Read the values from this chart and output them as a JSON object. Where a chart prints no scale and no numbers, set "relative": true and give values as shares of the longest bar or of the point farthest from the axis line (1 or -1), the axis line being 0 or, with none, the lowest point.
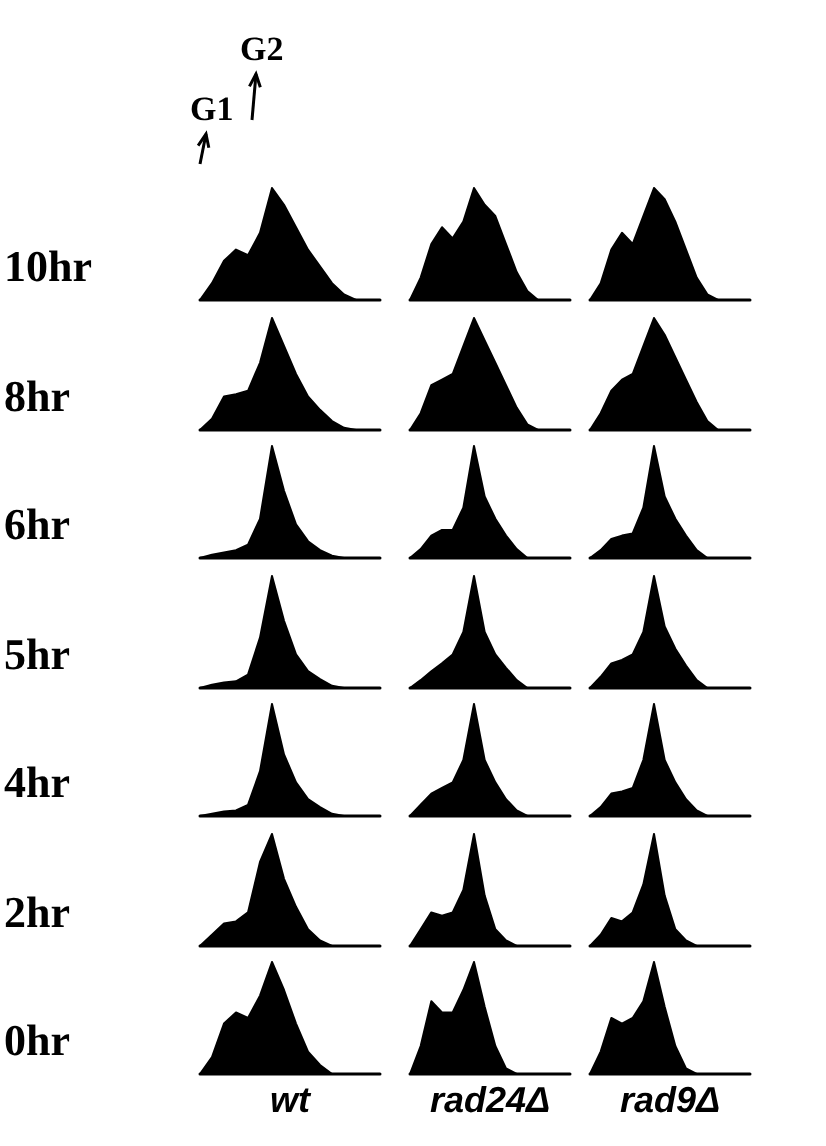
{
  "chart_data": [
    {
      "type": "area",
      "relative": true,
      "ylabel": "10hr",
      "annotations": [
        "G1",
        "G2"
      ],
      "categories": [
        null,
        null,
        null,
        null,
        null,
        null,
        null,
        null,
        null,
        null,
        null,
        null,
        null,
        null,
        null,
        null
      ],
      "series": [
        {
          "color": "#000000",
          "values": [
            0,
            0.15,
            0.35,
            0.45,
            0.4,
            0.6,
            1,
            0.85,
            0.65,
            0.45,
            0.3,
            0.15,
            0.05,
            0,
            0,
            0
          ]
        }
      ]
    },
    {
      "type": "area",
      "relative": true,
      "categories": [
        null,
        null,
        null,
        null,
        null,
        null,
        null,
        null,
        null,
        null,
        null,
        null,
        null,
        null,
        null,
        null
      ],
      "series": [
        {
          "color": "#000000",
          "values": [
            0,
            0.2,
            0.5,
            0.65,
            0.55,
            0.7,
            1,
            0.85,
            0.75,
            0.5,
            0.25,
            0.08,
            0,
            0,
            0,
            0
          ]
        }
      ]
    },
    {
      "type": "area",
      "relative": true,
      "categories": [
        null,
        null,
        null,
        null,
        null,
        null,
        null,
        null,
        null,
        null,
        null,
        null,
        null,
        null,
        null,
        null
      ],
      "series": [
        {
          "color": "#000000",
          "values": [
            0,
            0.15,
            0.45,
            0.6,
            0.5,
            0.75,
            1,
            0.9,
            0.7,
            0.45,
            0.2,
            0.05,
            0,
            0,
            0,
            0
          ]
        }
      ]
    },
    {
      "type": "area",
      "relative": true,
      "ylabel": "8hr",
      "categories": [
        null,
        null,
        null,
        null,
        null,
        null,
        null,
        null,
        null,
        null,
        null,
        null,
        null,
        null,
        null,
        null
      ],
      "series": [
        {
          "color": "#000000",
          "values": [
            0,
            0.1,
            0.3,
            0.32,
            0.35,
            0.6,
            1,
            0.75,
            0.5,
            0.3,
            0.18,
            0.08,
            0.02,
            0,
            0,
            0
          ]
        }
      ]
    },
    {
      "type": "area",
      "relative": true,
      "categories": [
        null,
        null,
        null,
        null,
        null,
        null,
        null,
        null,
        null,
        null,
        null,
        null,
        null,
        null,
        null,
        null
      ],
      "series": [
        {
          "color": "#000000",
          "values": [
            0,
            0.15,
            0.4,
            0.45,
            0.5,
            0.75,
            1,
            0.8,
            0.6,
            0.4,
            0.2,
            0.05,
            0,
            0,
            0,
            0
          ]
        }
      ]
    },
    {
      "type": "area",
      "relative": true,
      "categories": [
        null,
        null,
        null,
        null,
        null,
        null,
        null,
        null,
        null,
        null,
        null,
        null,
        null,
        null,
        null,
        null
      ],
      "series": [
        {
          "color": "#000000",
          "values": [
            0,
            0.15,
            0.35,
            0.45,
            0.5,
            0.75,
            1,
            0.85,
            0.65,
            0.45,
            0.25,
            0.08,
            0,
            0,
            0,
            0
          ]
        }
      ]
    },
    {
      "type": "area",
      "relative": true,
      "ylabel": "6hr",
      "categories": [
        null,
        null,
        null,
        null,
        null,
        null,
        null,
        null,
        null,
        null,
        null,
        null,
        null,
        null,
        null,
        null
      ],
      "series": [
        {
          "color": "#000000",
          "values": [
            0,
            0.03,
            0.05,
            0.07,
            0.12,
            0.35,
            1,
            0.6,
            0.3,
            0.15,
            0.07,
            0.02,
            0,
            0,
            0,
            0
          ]
        }
      ]
    },
    {
      "type": "area",
      "relative": true,
      "categories": [
        null,
        null,
        null,
        null,
        null,
        null,
        null,
        null,
        null,
        null,
        null,
        null,
        null,
        null,
        null,
        null
      ],
      "series": [
        {
          "color": "#000000",
          "values": [
            0,
            0.08,
            0.2,
            0.25,
            0.25,
            0.45,
            1,
            0.55,
            0.35,
            0.2,
            0.08,
            0,
            0,
            0,
            0,
            0
          ]
        }
      ]
    },
    {
      "type": "area",
      "relative": true,
      "categories": [
        null,
        null,
        null,
        null,
        null,
        null,
        null,
        null,
        null,
        null,
        null,
        null,
        null,
        null,
        null,
        null
      ],
      "series": [
        {
          "color": "#000000",
          "values": [
            0,
            0.07,
            0.17,
            0.2,
            0.22,
            0.45,
            1,
            0.55,
            0.35,
            0.2,
            0.07,
            0,
            0,
            0,
            0,
            0
          ]
        }
      ]
    },
    {
      "type": "area",
      "relative": true,
      "ylabel": "5hr",
      "categories": [
        null,
        null,
        null,
        null,
        null,
        null,
        null,
        null,
        null,
        null,
        null,
        null,
        null,
        null,
        null,
        null
      ],
      "series": [
        {
          "color": "#000000",
          "values": [
            0,
            0.03,
            0.05,
            0.06,
            0.12,
            0.45,
            1,
            0.6,
            0.3,
            0.15,
            0.08,
            0.02,
            0,
            0,
            0,
            0
          ]
        }
      ]
    },
    {
      "type": "area",
      "relative": true,
      "categories": [
        null,
        null,
        null,
        null,
        null,
        null,
        null,
        null,
        null,
        null,
        null,
        null,
        null,
        null,
        null,
        null
      ],
      "series": [
        {
          "color": "#000000",
          "values": [
            0,
            0.07,
            0.15,
            0.22,
            0.3,
            0.5,
            1,
            0.5,
            0.3,
            0.18,
            0.07,
            0,
            0,
            0,
            0,
            0
          ]
        }
      ]
    },
    {
      "type": "area",
      "relative": true,
      "categories": [
        null,
        null,
        null,
        null,
        null,
        null,
        null,
        null,
        null,
        null,
        null,
        null,
        null,
        null,
        null,
        null
      ],
      "series": [
        {
          "color": "#000000",
          "values": [
            0,
            0.1,
            0.22,
            0.25,
            0.3,
            0.5,
            1,
            0.55,
            0.35,
            0.2,
            0.07,
            0,
            0,
            0,
            0,
            0
          ]
        }
      ]
    },
    {
      "type": "area",
      "relative": true,
      "ylabel": "4hr",
      "categories": [
        null,
        null,
        null,
        null,
        null,
        null,
        null,
        null,
        null,
        null,
        null,
        null,
        null,
        null,
        null,
        null
      ],
      "series": [
        {
          "color": "#000000",
          "values": [
            0,
            0.02,
            0.04,
            0.05,
            0.1,
            0.4,
            1,
            0.55,
            0.3,
            0.15,
            0.08,
            0.02,
            0,
            0,
            0,
            0
          ]
        }
      ]
    },
    {
      "type": "area",
      "relative": true,
      "categories": [
        null,
        null,
        null,
        null,
        null,
        null,
        null,
        null,
        null,
        null,
        null,
        null,
        null,
        null,
        null,
        null
      ],
      "series": [
        {
          "color": "#000000",
          "values": [
            0,
            0.1,
            0.2,
            0.25,
            0.3,
            0.5,
            1,
            0.5,
            0.3,
            0.15,
            0.05,
            0,
            0,
            0,
            0,
            0
          ]
        }
      ]
    },
    {
      "type": "area",
      "relative": true,
      "categories": [
        null,
        null,
        null,
        null,
        null,
        null,
        null,
        null,
        null,
        null,
        null,
        null,
        null,
        null,
        null,
        null
      ],
      "series": [
        {
          "color": "#000000",
          "values": [
            0,
            0.08,
            0.2,
            0.22,
            0.25,
            0.5,
            1,
            0.5,
            0.3,
            0.15,
            0.05,
            0,
            0,
            0,
            0,
            0
          ]
        }
      ]
    },
    {
      "type": "area",
      "relative": true,
      "ylabel": "2hr",
      "categories": [
        null,
        null,
        null,
        null,
        null,
        null,
        null,
        null,
        null,
        null,
        null,
        null,
        null,
        null,
        null,
        null
      ],
      "series": [
        {
          "color": "#000000",
          "values": [
            0,
            0.1,
            0.2,
            0.22,
            0.3,
            0.75,
            1,
            0.6,
            0.35,
            0.15,
            0.05,
            0,
            0,
            0,
            0,
            0
          ]
        }
      ]
    },
    {
      "type": "area",
      "relative": true,
      "categories": [
        null,
        null,
        null,
        null,
        null,
        null,
        null,
        null,
        null,
        null,
        null,
        null,
        null,
        null,
        null,
        null
      ],
      "series": [
        {
          "color": "#000000",
          "values": [
            0,
            0.15,
            0.3,
            0.27,
            0.3,
            0.5,
            1,
            0.45,
            0.15,
            0.05,
            0,
            0,
            0,
            0,
            0,
            0
          ]
        }
      ]
    },
    {
      "type": "area",
      "relative": true,
      "categories": [
        null,
        null,
        null,
        null,
        null,
        null,
        null,
        null,
        null,
        null,
        null,
        null,
        null,
        null,
        null,
        null
      ],
      "series": [
        {
          "color": "#000000",
          "values": [
            0,
            0.1,
            0.25,
            0.22,
            0.3,
            0.55,
            1,
            0.45,
            0.15,
            0.05,
            0,
            0,
            0,
            0,
            0,
            0
          ]
        }
      ]
    },
    {
      "type": "area",
      "relative": true,
      "ylabel": "0hr",
      "xlabel": "wt",
      "categories": [
        null,
        null,
        null,
        null,
        null,
        null,
        null,
        null,
        null,
        null,
        null,
        null,
        null,
        null,
        null,
        null
      ],
      "series": [
        {
          "color": "#000000",
          "values": [
            0,
            0.15,
            0.45,
            0.55,
            0.5,
            0.7,
            1,
            0.75,
            0.45,
            0.2,
            0.08,
            0,
            0,
            0,
            0,
            0
          ]
        }
      ]
    },
    {
      "type": "area",
      "relative": true,
      "xlabel": "rad24Δ",
      "categories": [
        null,
        null,
        null,
        null,
        null,
        null,
        null,
        null,
        null,
        null,
        null,
        null,
        null,
        null,
        null,
        null
      ],
      "series": [
        {
          "color": "#000000",
          "values": [
            0,
            0.25,
            0.65,
            0.55,
            0.55,
            0.75,
            1,
            0.6,
            0.25,
            0.05,
            0,
            0,
            0,
            0,
            0,
            0
          ]
        }
      ]
    },
    {
      "type": "area",
      "relative": true,
      "xlabel": "rad9Δ",
      "categories": [
        null,
        null,
        null,
        null,
        null,
        null,
        null,
        null,
        null,
        null,
        null,
        null,
        null,
        null,
        null,
        null
      ],
      "series": [
        {
          "color": "#000000",
          "values": [
            0,
            0.2,
            0.5,
            0.45,
            0.5,
            0.65,
            1,
            0.6,
            0.25,
            0.05,
            0,
            0,
            0,
            0,
            0,
            0
          ]
        }
      ]
    }
  ]
}
